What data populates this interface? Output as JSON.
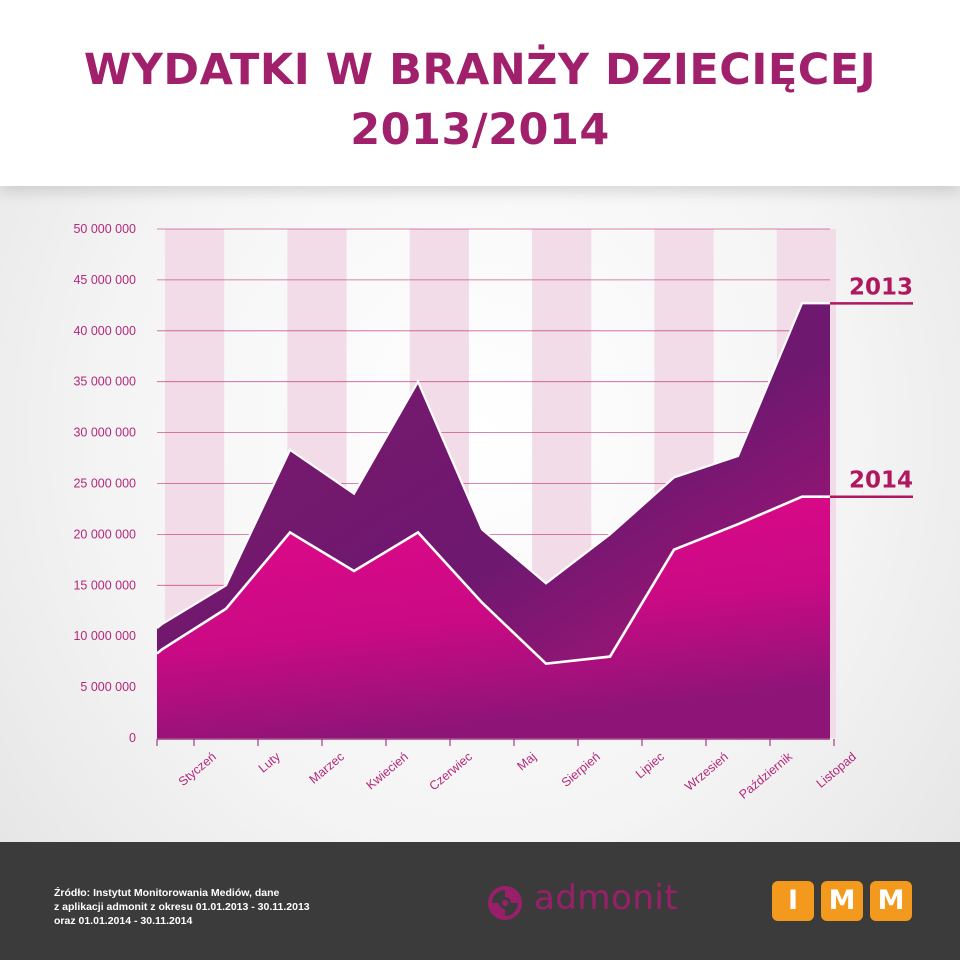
{
  "title": {
    "line1": "WYDATKI W BRANŻY DZIECIĘCEJ",
    "line2": "2013/2014"
  },
  "colors": {
    "title": "#a0206c",
    "area2013": "#8a1a6e",
    "area2014": "#d4097f",
    "stripe": "#f1dce8",
    "grid": "#c02670",
    "footer": "#3b3b3b",
    "imm": "#f39a1e"
  },
  "chart_data": {
    "type": "area",
    "categories": [
      "Styczeń",
      "Luty",
      "Marzec",
      "Kwiecień",
      "Czerwiec",
      "Maj",
      "Sierpień",
      "Lipiec",
      "Wrzesień",
      "Październik",
      "Listopad"
    ],
    "series": [
      {
        "name": "2013",
        "values": [
          11200000,
          15000000,
          28300000,
          24000000,
          35000000,
          20500000,
          15200000,
          20000000,
          25600000,
          27700000,
          42700000
        ]
      },
      {
        "name": "2014",
        "values": [
          8700000,
          12700000,
          20200000,
          16400000,
          20200000,
          13300000,
          7300000,
          8000000,
          18500000,
          21000000,
          23700000
        ]
      }
    ],
    "yticks": [
      "50 000 000",
      "45 000 000",
      "40 000 000",
      "35 000 000",
      "30 000 000",
      "25 000 000",
      "20 000 000",
      "15 000 000",
      "10 000 000",
      "5 000 000",
      "0"
    ],
    "ylim": [
      0,
      50000000
    ],
    "grid": true,
    "xlabel": "",
    "ylabel": ""
  },
  "footer": {
    "source_lines": [
      "Źródło: Instytut Monitorowania Mediów, dane",
      "z aplikacji admonit z okresu 01.01.2013 - 30.11.2013",
      "oraz 01.01.2014 - 30.11.2014"
    ],
    "admonit": "admonit",
    "imm": [
      "I",
      "M",
      "M"
    ]
  }
}
